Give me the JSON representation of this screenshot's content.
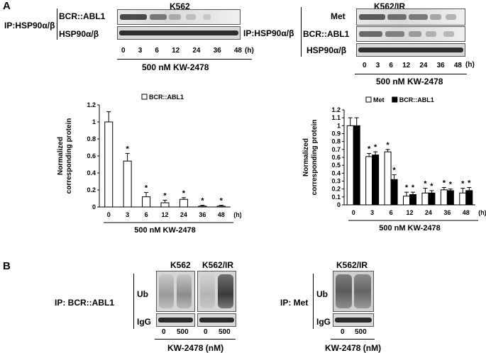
{
  "panel_a_label": "A",
  "panel_b_label": "B",
  "blot_left": {
    "cell_line": "K562",
    "ip_label": "IP:HSP90α/β",
    "rows": [
      "BCR::ABL1",
      "HSP90α/β"
    ],
    "times": [
      "0",
      "3",
      "6",
      "12",
      "24",
      "36",
      "48"
    ],
    "unit": "(h)",
    "treatment": "500 nM KW-2478"
  },
  "blot_right": {
    "cell_line": "K562/IR",
    "ip_label": "IP:HSP90α/β",
    "rows": [
      "Met",
      "BCR::ABL1",
      "HSP90α/β"
    ],
    "times": [
      "0",
      "3",
      "6",
      "12",
      "24",
      "36",
      "48"
    ],
    "unit": "(h)",
    "treatment": "500 nM KW-2478"
  },
  "chart_data": [
    {
      "type": "bar",
      "categories": [
        "0",
        "3",
        "6",
        "12",
        "24",
        "36",
        "48"
      ],
      "series": [
        {
          "name": "BCR::ABL1",
          "values": [
            1.0,
            0.54,
            0.12,
            0.05,
            0.09,
            0.01,
            0.01
          ],
          "errors": [
            0.12,
            0.09,
            0.05,
            0.03,
            0.02,
            0.01,
            0.01
          ],
          "sig": [
            "",
            "*",
            "*",
            "*",
            "*",
            "*",
            "*"
          ]
        }
      ],
      "ylabel": "Normalized corresponding protein",
      "xunit": "(h)",
      "xlabel": "500 nM KW-2478",
      "ylim": [
        0,
        1.2
      ],
      "yticks": [
        "0",
        "0.2",
        "0.4",
        "0.6",
        "0.8",
        "1",
        "1.2"
      ],
      "legend": "top"
    },
    {
      "type": "bar",
      "categories": [
        "0",
        "3",
        "6",
        "12",
        "24",
        "36",
        "48"
      ],
      "series": [
        {
          "name": "Met",
          "values": [
            1.0,
            0.61,
            0.67,
            0.11,
            0.15,
            0.19,
            0.15
          ],
          "errors": [
            0.1,
            0.04,
            0.03,
            0.05,
            0.06,
            0.03,
            0.06
          ],
          "sig": [
            "",
            "*",
            "*",
            "*",
            "*",
            "*",
            "*"
          ]
        },
        {
          "name": "BCR::ABL1",
          "values": [
            1.0,
            0.63,
            0.32,
            0.13,
            0.15,
            0.18,
            0.18
          ],
          "errors": [
            0.1,
            0.04,
            0.06,
            0.03,
            0.03,
            0.02,
            0.04
          ],
          "sig": [
            "",
            "*",
            "*",
            "*",
            "*",
            "*",
            "*"
          ]
        }
      ],
      "ylabel": "Normalized corresponding protein",
      "xunit": "(h)",
      "xlabel": "500 nM KW-2478",
      "ylim": [
        0,
        1.2
      ],
      "yticks": [
        "0",
        "0.1",
        "0.2",
        "0.3",
        "0.4",
        "0.5",
        "0.6",
        "0.7",
        "0.8",
        "0.9",
        "1",
        "1.1",
        "1.2"
      ],
      "legend": "top"
    }
  ],
  "panel_b_left": {
    "ip_label": "IP: BCR::ABL1",
    "cell_lines": [
      "K562",
      "K562/IR"
    ],
    "rows": [
      "Ub",
      "IgG"
    ],
    "doses": [
      "0",
      "500",
      "0",
      "500"
    ],
    "treatment": "KW-2478 (nM)"
  },
  "panel_b_right": {
    "ip_label": "IP: Met",
    "cell_line": "K562/IR",
    "rows": [
      "Ub",
      "IgG"
    ],
    "doses": [
      "0",
      "500"
    ],
    "treatment": "KW-2478 (nM)"
  }
}
